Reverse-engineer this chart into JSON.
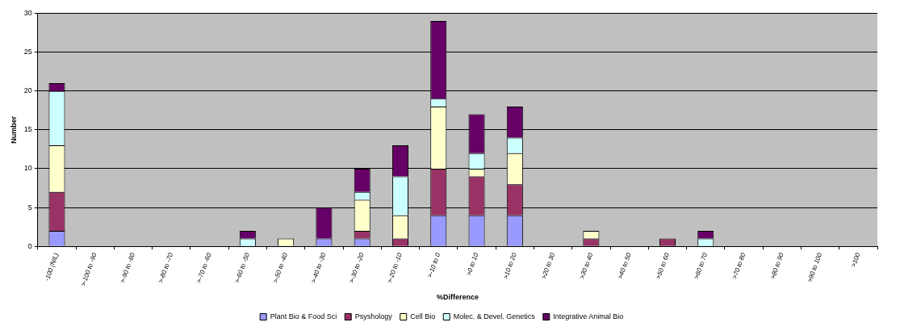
{
  "chart_data": {
    "type": "bar",
    "stacked": true,
    "xlabel": "%Difference",
    "ylabel": "Number",
    "categories": [
      "-100 (NIL)",
      ">-100 to -90",
      ">-90 to -80",
      ">-80 to -70",
      ">-70 to -60",
      ">-60 to -50",
      ">-50 to -40",
      ">-40 to -30",
      ">-30 to -20",
      ">-20 to -10",
      ">-10 to 0",
      ">0 to 10",
      ">10 to 20",
      ">20 to 30",
      ">30 to 40",
      ">40 to 50",
      ">50 to 60",
      ">60 to 70",
      ">70 to 80",
      ">80 to 90",
      ">90 to 100",
      ">100"
    ],
    "series": [
      {
        "name": "Plant Bio & Food Sci",
        "color": "#9999ff",
        "values": [
          2,
          0,
          0,
          0,
          0,
          0,
          0,
          1,
          1,
          0,
          4,
          4,
          4,
          0,
          0,
          0,
          0,
          0,
          0,
          0,
          0,
          0
        ]
      },
      {
        "name": "Psyshology",
        "color": "#993366",
        "values": [
          5,
          0,
          0,
          0,
          0,
          0,
          0,
          0,
          1,
          1,
          6,
          5,
          4,
          0,
          1,
          0,
          1,
          0,
          0,
          0,
          0,
          0
        ]
      },
      {
        "name": "Cell Bio",
        "color": "#ffffcc",
        "values": [
          6,
          0,
          0,
          0,
          0,
          0,
          1,
          0,
          4,
          3,
          8,
          1,
          4,
          0,
          1,
          0,
          0,
          0,
          0,
          0,
          0,
          0
        ]
      },
      {
        "name": "Molec. & Devel. Genetics",
        "color": "#ccffff",
        "values": [
          7,
          0,
          0,
          0,
          0,
          1,
          0,
          0,
          1,
          5,
          1,
          2,
          2,
          0,
          0,
          0,
          0,
          1,
          0,
          0,
          0,
          0
        ]
      },
      {
        "name": "Integrative Animal Bio",
        "color": "#660066",
        "values": [
          1,
          0,
          0,
          0,
          0,
          1,
          0,
          4,
          3,
          4,
          10,
          5,
          4,
          0,
          0,
          0,
          0,
          1,
          0,
          0,
          0,
          0
        ]
      }
    ],
    "ylim": [
      0,
      30
    ],
    "yticks": [
      0,
      5,
      10,
      15,
      20,
      25,
      30
    ],
    "grid": "y",
    "legend": "bottom"
  }
}
